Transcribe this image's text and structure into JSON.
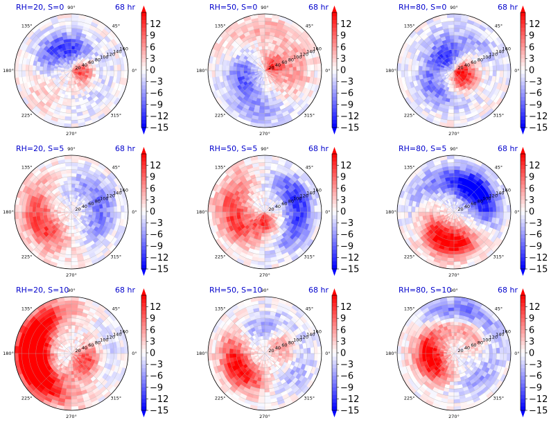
{
  "chart_data": {
    "type": "heatmap",
    "layout": {
      "rows": 3,
      "cols": 3
    },
    "colormap": "bwr",
    "colors": {
      "negative": "#0000ff",
      "zero": "#ffffff",
      "positive": "#ff0000",
      "title": "#0000cc"
    },
    "color_range": [
      -15,
      15
    ],
    "colorbar_ticks": [
      "12",
      "9",
      "6",
      "3",
      "0",
      "−3",
      "−6",
      "−9",
      "−12",
      "−15"
    ],
    "colorbar_extend": "both",
    "angle_ticks": [
      "90°",
      "45°",
      "0°",
      "315°",
      "270°",
      "225°",
      "180°",
      "135°"
    ],
    "radial_ticks": [
      "20",
      "40",
      "60",
      "80",
      "100",
      "120",
      "140",
      "160"
    ],
    "time_label": "68 hr",
    "panels": [
      {
        "title": "RH=20, S=0",
        "time": "68 hr",
        "pattern": [
          {
            "a": 0,
            "r": 0.15,
            "v": 12
          },
          {
            "a": 90,
            "r": 0.35,
            "v": -10
          },
          {
            "a": 150,
            "r": 0.55,
            "v": -8
          },
          {
            "a": 200,
            "r": 0.6,
            "v": 6
          },
          {
            "a": 300,
            "r": 0.6,
            "v": -3
          }
        ]
      },
      {
        "title": "RH=50, S=0",
        "time": "68 hr",
        "pattern": [
          {
            "a": 30,
            "r": 0.15,
            "v": 12
          },
          {
            "a": 200,
            "r": 0.4,
            "v": -9
          },
          {
            "a": 270,
            "r": 0.7,
            "v": -6
          },
          {
            "a": 100,
            "r": 0.75,
            "v": 4
          },
          {
            "a": 340,
            "r": 0.6,
            "v": 6
          }
        ]
      },
      {
        "title": "RH=80, S=0",
        "time": "68 hr",
        "pattern": [
          {
            "a": 0,
            "r": 0.1,
            "v": 12
          },
          {
            "a": 120,
            "r": 0.3,
            "v": -12
          },
          {
            "a": 240,
            "r": 0.45,
            "v": -9
          },
          {
            "a": 300,
            "r": 0.25,
            "v": 9
          },
          {
            "a": 60,
            "r": 0.7,
            "v": -4
          }
        ]
      },
      {
        "title": "RH=20, S=5",
        "time": "68 hr",
        "pattern": [
          {
            "a": 210,
            "r": 0.5,
            "v": 9
          },
          {
            "a": 180,
            "r": 0.7,
            "v": 6
          },
          {
            "a": 30,
            "r": 0.55,
            "v": -6
          },
          {
            "a": 330,
            "r": 0.5,
            "v": -4
          },
          {
            "a": 120,
            "r": 0.4,
            "v": -2
          }
        ]
      },
      {
        "title": "RH=50, S=5",
        "time": "68 hr",
        "pattern": [
          {
            "a": 200,
            "r": 0.5,
            "v": 9
          },
          {
            "a": 150,
            "r": 0.7,
            "v": 6
          },
          {
            "a": 30,
            "r": 0.6,
            "v": -9
          },
          {
            "a": 330,
            "r": 0.6,
            "v": -6
          },
          {
            "a": 270,
            "r": 0.15,
            "v": 12
          }
        ]
      },
      {
        "title": "RH=80, S=5",
        "time": "68 hr",
        "pattern": [
          {
            "a": 60,
            "r": 0.5,
            "v": -12
          },
          {
            "a": 20,
            "r": 0.6,
            "v": -9
          },
          {
            "a": 240,
            "r": 0.4,
            "v": 9
          },
          {
            "a": 270,
            "r": 0.6,
            "v": 12
          },
          {
            "a": 150,
            "r": 0.7,
            "v": -4
          }
        ]
      },
      {
        "title": "RH=20, S=10",
        "time": "68 hr",
        "pattern": [
          {
            "a": 180,
            "r": 0.6,
            "v": 15
          },
          {
            "a": 210,
            "r": 0.75,
            "v": 12
          },
          {
            "a": 150,
            "r": 0.8,
            "v": 9
          },
          {
            "a": 330,
            "r": 0.3,
            "v": 12
          },
          {
            "a": 0,
            "r": 0.6,
            "v": -3
          }
        ]
      },
      {
        "title": "RH=50, S=10",
        "time": "68 hr",
        "pattern": [
          {
            "a": 220,
            "r": 0.5,
            "v": 12
          },
          {
            "a": 90,
            "r": 0.5,
            "v": -9
          },
          {
            "a": 30,
            "r": 0.4,
            "v": 9
          },
          {
            "a": 330,
            "r": 0.6,
            "v": -6
          },
          {
            "a": 180,
            "r": 0.6,
            "v": 6
          }
        ]
      },
      {
        "title": "RH=80, S=10",
        "time": "68 hr",
        "pattern": [
          {
            "a": 80,
            "r": 0.7,
            "v": -15
          },
          {
            "a": 60,
            "r": 0.55,
            "v": 12
          },
          {
            "a": 200,
            "r": 0.4,
            "v": 15
          },
          {
            "a": 150,
            "r": 0.6,
            "v": 6
          },
          {
            "a": 320,
            "r": 0.6,
            "v": -6
          }
        ]
      }
    ]
  }
}
